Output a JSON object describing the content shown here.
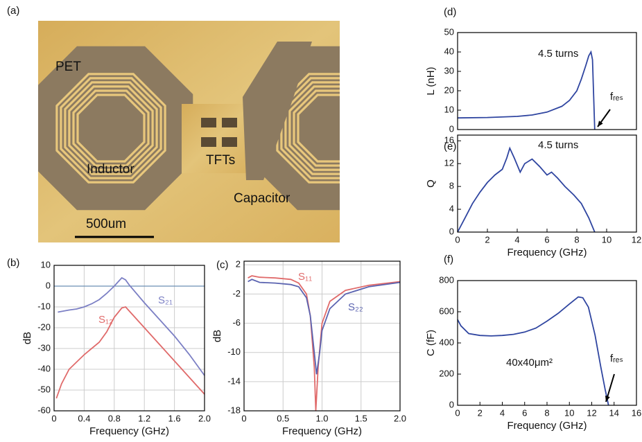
{
  "photo": {
    "label": "(a)",
    "labels": [
      "PET",
      "Inductor",
      "TFTs",
      "Capacitor"
    ],
    "scale_bar": "500um"
  },
  "chart_data": [
    {
      "type": "line",
      "label": "(b)",
      "xlabel": "Frequency (GHz)",
      "ylabel": "dB",
      "xlim": [
        0,
        2
      ],
      "ylim": [
        -60,
        10
      ],
      "xticks": [
        0,
        0.4,
        0.8,
        1.2,
        1.6,
        {
          "value": 2,
          "label": "2.0"
        }
      ],
      "yticks": [
        10,
        0,
        -10,
        -20,
        -30,
        -40,
        -50,
        -60
      ],
      "grid": true,
      "box": true,
      "hline": 0,
      "hline_color": "#6b8fb5",
      "series": [
        {
          "name": "S₂₁",
          "color": "#7b7fc4",
          "x": [
            0.05,
            0.2,
            0.3,
            0.4,
            0.5,
            0.6,
            0.7,
            0.8,
            0.85,
            0.9,
            0.95,
            1.0,
            1.2,
            1.4,
            1.6,
            1.8,
            2.0
          ],
          "values": [
            -12.5,
            -11.5,
            -11,
            -10,
            -8.5,
            -6.5,
            -3.5,
            0,
            2,
            4,
            3,
            0.5,
            -8,
            -16,
            -24,
            -33,
            -43
          ]
        },
        {
          "name": "S₁₂",
          "color": "#e06a6a",
          "x": [
            0.03,
            0.1,
            0.2,
            0.4,
            0.6,
            0.7,
            0.8,
            0.9,
            0.95,
            1.0,
            1.2,
            1.4,
            1.6,
            1.8,
            2.0
          ],
          "values": [
            -54,
            -47,
            -40,
            -33,
            -27,
            -22,
            -15,
            -10.5,
            -10,
            -12,
            -20,
            -28,
            -36,
            -44,
            -52
          ]
        }
      ]
    },
    {
      "type": "line",
      "label": "(c)",
      "xlabel": "Frequency (GHz)",
      "ylabel": "dB",
      "xlim": [
        0,
        2
      ],
      "ylim": [
        -18,
        2.5
      ],
      "xticks": [
        0,
        0.5,
        {
          "value": 1,
          "label": "1.0"
        },
        1.5,
        {
          "value": 2,
          "label": "2.0"
        }
      ],
      "yticks": [
        2,
        -2,
        -6,
        -10,
        -14,
        -18
      ],
      "grid": true,
      "box": true,
      "series": [
        {
          "name": "S₁₁",
          "color": "#e06a6a",
          "x": [
            0.05,
            0.1,
            0.2,
            0.4,
            0.6,
            0.7,
            0.8,
            0.85,
            0.9,
            0.92,
            0.95,
            1.0,
            1.1,
            1.3,
            1.6,
            2.0
          ],
          "values": [
            0.2,
            0.5,
            0.3,
            0.2,
            0,
            -0.5,
            -2,
            -5,
            -12,
            -18,
            -12,
            -6,
            -3,
            -1.5,
            -0.8,
            -0.3
          ]
        },
        {
          "name": "S₂₂",
          "color": "#5a63b0",
          "x": [
            0.05,
            0.1,
            0.2,
            0.4,
            0.6,
            0.7,
            0.8,
            0.85,
            0.9,
            0.93,
            0.97,
            1.0,
            1.1,
            1.3,
            1.6,
            2.0
          ],
          "values": [
            -0.3,
            0,
            -0.4,
            -0.5,
            -0.7,
            -1,
            -2.5,
            -5,
            -10,
            -13,
            -10,
            -7,
            -4,
            -2,
            -1,
            -0.4
          ]
        }
      ]
    },
    {
      "type": "line",
      "label": "(d)",
      "ylabel": "L (nH)",
      "xlim": [
        0,
        12
      ],
      "ylim": [
        0,
        50
      ],
      "yticks": [
        0,
        10,
        20,
        30,
        40,
        50
      ],
      "grid": false,
      "box": true,
      "annotations": [
        "4.5 turns",
        "fᵣₑₛ"
      ],
      "series": [
        {
          "color": "#2f45a0",
          "x": [
            0,
            2,
            4,
            5,
            6,
            7,
            7.5,
            8,
            8.3,
            8.6,
            8.8,
            8.95,
            9.05,
            9.2
          ],
          "values": [
            6,
            6.2,
            6.8,
            7.5,
            9,
            12,
            15,
            20,
            26,
            33,
            38,
            40,
            36,
            0
          ]
        }
      ]
    },
    {
      "type": "line",
      "label": "(e)",
      "xlabel": "Frequency (GHz)",
      "ylabel": "Q",
      "xlim": [
        0,
        12
      ],
      "ylim": [
        0,
        17
      ],
      "xticks": [
        0,
        2,
        4,
        6,
        8,
        10,
        12
      ],
      "yticks": [
        0,
        4,
        8,
        12,
        16
      ],
      "grid": false,
      "box": true,
      "annotations": [
        "4.5 turns"
      ],
      "series": [
        {
          "color": "#2f45a0",
          "x": [
            0,
            0.5,
            1,
            1.5,
            2,
            2.5,
            3,
            3.3,
            3.5,
            3.8,
            4.2,
            4.5,
            5,
            5.5,
            6,
            6.3,
            6.7,
            7.2,
            7.8,
            8.3,
            8.8,
            9.2
          ],
          "values": [
            0,
            2.5,
            5,
            7,
            8.7,
            10,
            11,
            13,
            14.7,
            13,
            10.5,
            12,
            12.8,
            11.5,
            10,
            10.5,
            9.5,
            8,
            6.5,
            5,
            2.5,
            0
          ]
        }
      ]
    },
    {
      "type": "line",
      "label": "(f)",
      "xlabel": "Frequency (GHz)",
      "ylabel": "C (fF)",
      "xlim": [
        0,
        16
      ],
      "ylim": [
        0,
        800
      ],
      "xticks": [
        0,
        2,
        4,
        6,
        8,
        10,
        12,
        14,
        16
      ],
      "yticks": [
        0,
        200,
        400,
        600,
        800
      ],
      "grid": false,
      "box": true,
      "annotations": [
        "40x40μm²",
        "fᵣₑₛ"
      ],
      "series": [
        {
          "color": "#2f45a0",
          "x": [
            0,
            0.3,
            1,
            2,
            3,
            4,
            5,
            6,
            7,
            8,
            9,
            10,
            10.8,
            11.2,
            11.7,
            12.3,
            12.8,
            13.2,
            13.5
          ],
          "values": [
            550,
            510,
            460,
            448,
            445,
            448,
            455,
            470,
            495,
            540,
            590,
            650,
            695,
            690,
            630,
            450,
            250,
            100,
            0
          ]
        }
      ]
    }
  ]
}
